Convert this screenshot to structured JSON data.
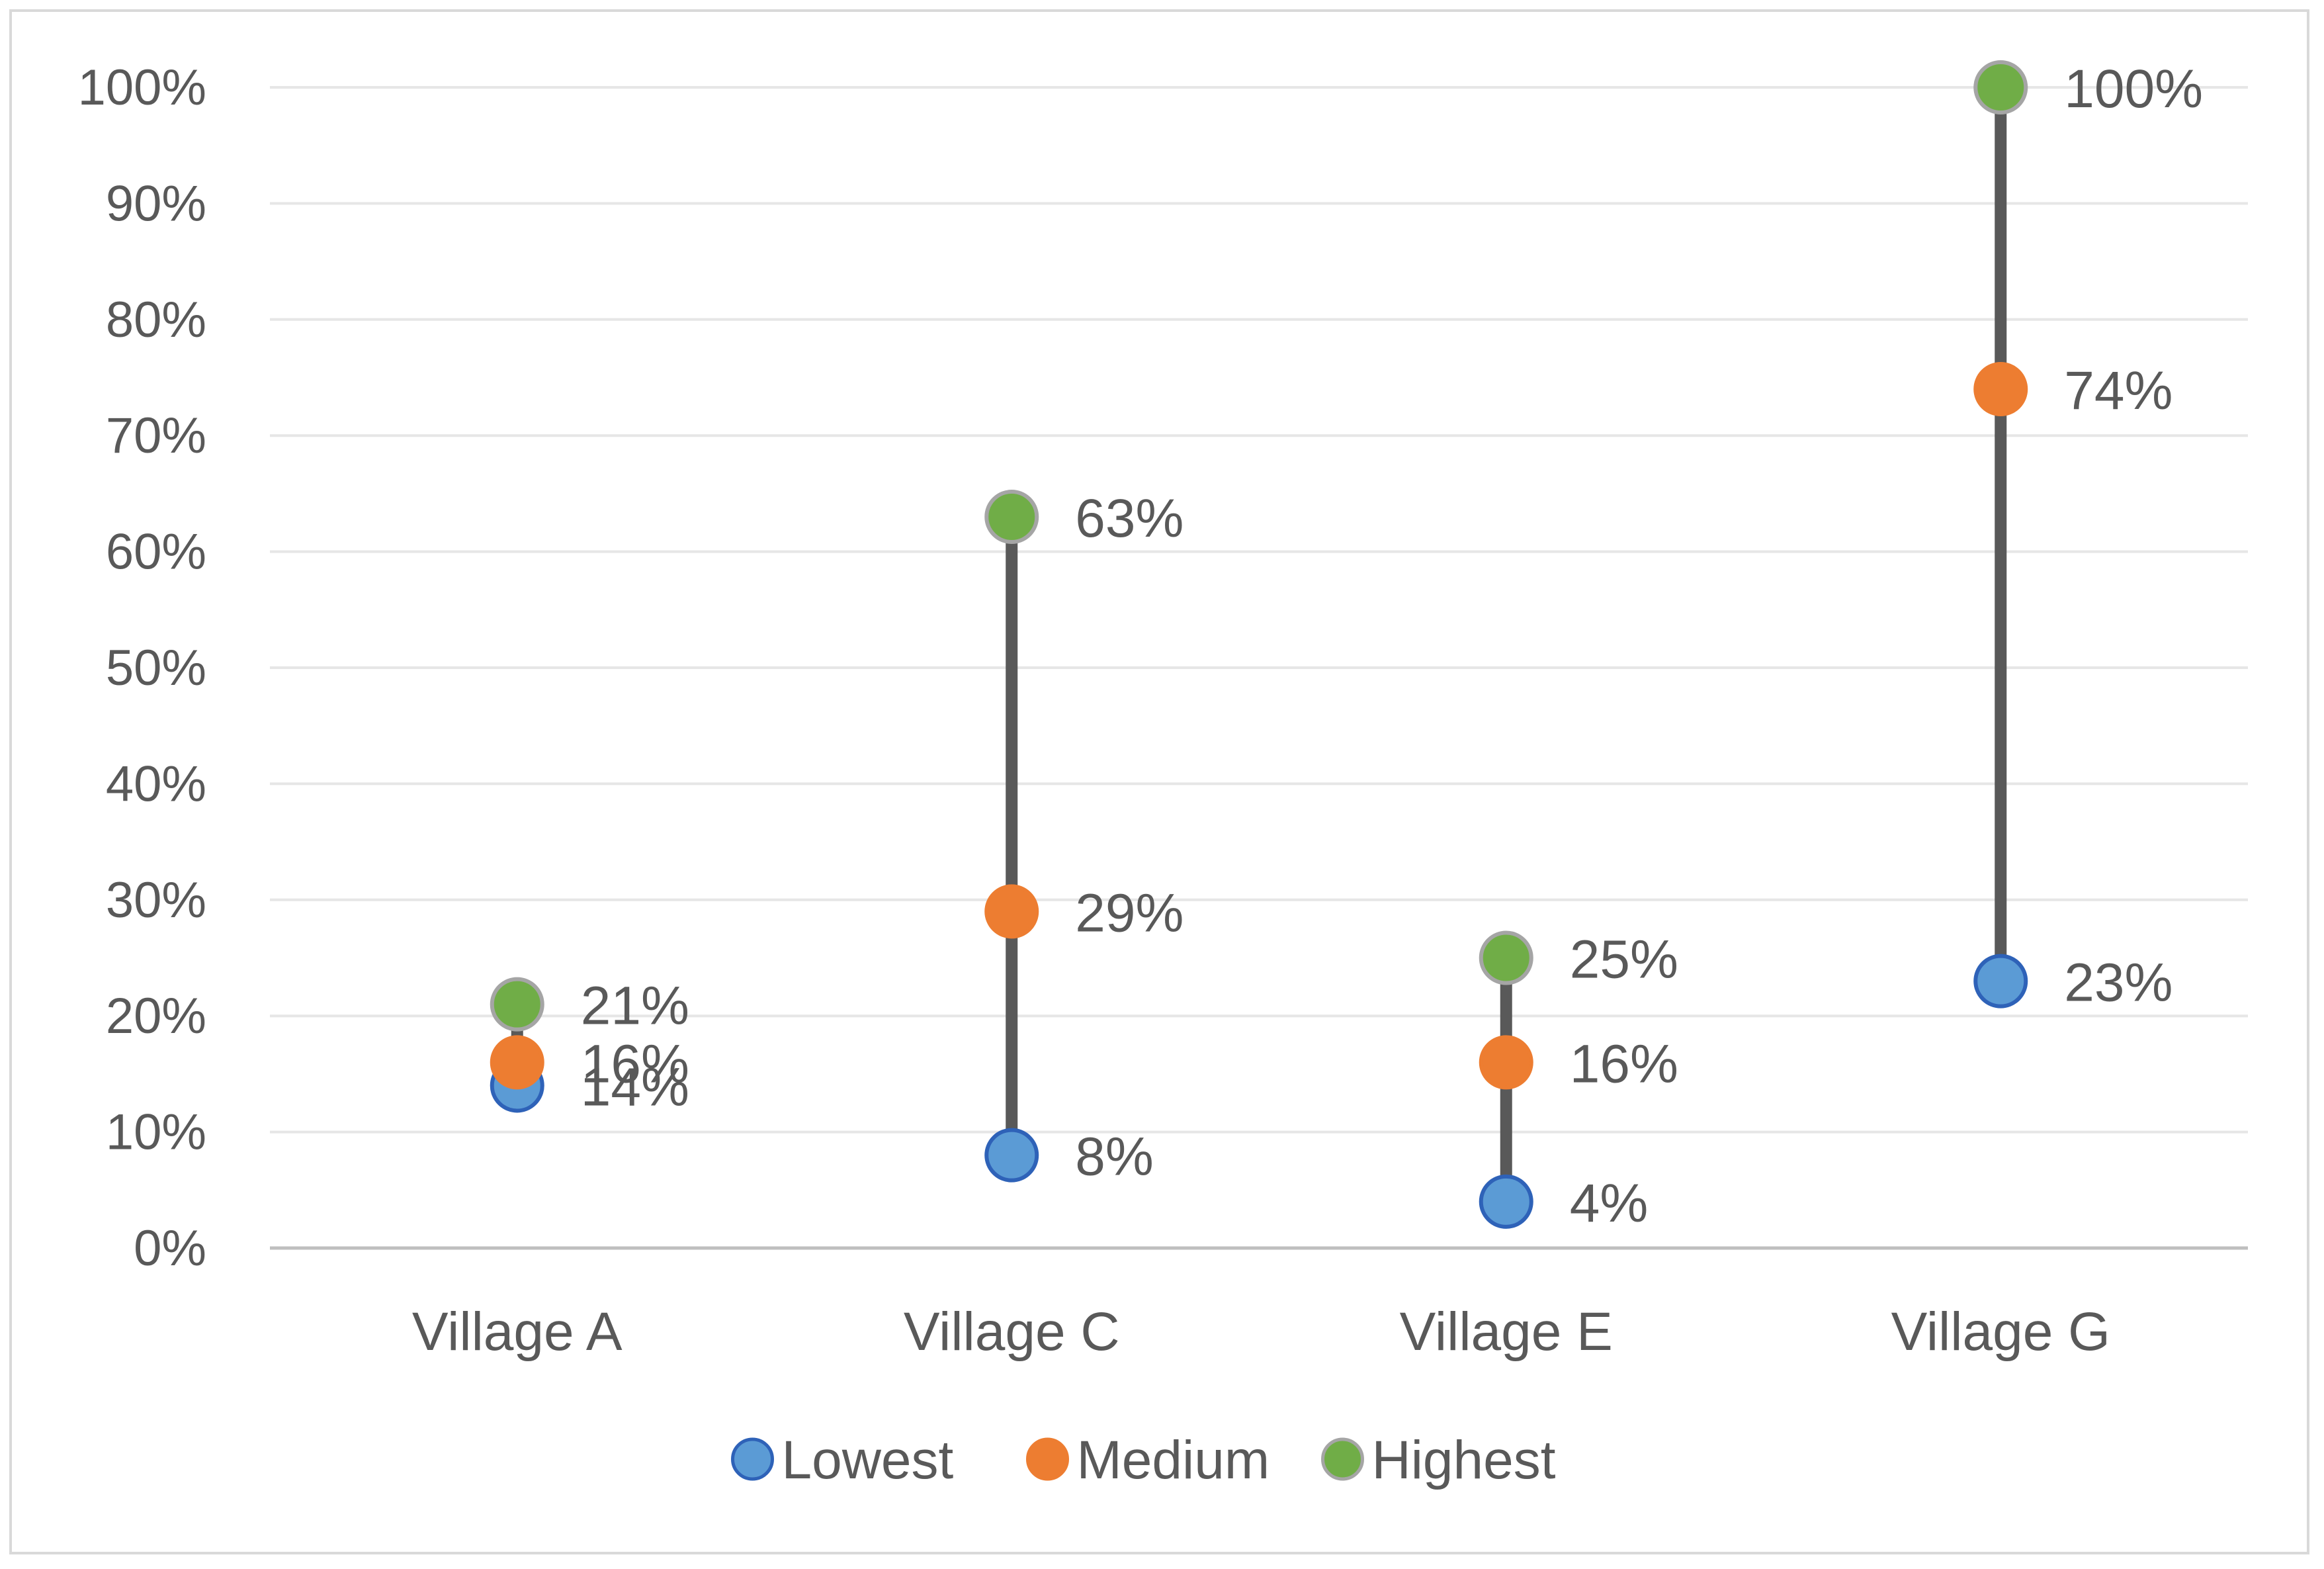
{
  "chart_data": {
    "type": "scatter",
    "title": "",
    "xlabel": "",
    "ylabel": "",
    "categories": [
      "Village A",
      "Village C",
      "Village E",
      "Village G"
    ],
    "ylim": [
      0,
      100
    ],
    "yticks": [
      0,
      10,
      20,
      30,
      40,
      50,
      60,
      70,
      80,
      90,
      100
    ],
    "ytick_labels": [
      "0%",
      "10%",
      "20%",
      "30%",
      "40%",
      "50%",
      "60%",
      "70%",
      "80%",
      "90%",
      "100%"
    ],
    "grid": true,
    "legend_position": "bottom",
    "series": [
      {
        "name": "Lowest",
        "color": "#5b9bd5",
        "stroke": "#2e62b8",
        "values": [
          14,
          8,
          4,
          23
        ],
        "labels": [
          "14%",
          "8%",
          "4%",
          "23%"
        ]
      },
      {
        "name": "Medium",
        "color": "#ed7d31",
        "stroke": "#ed7d31",
        "values": [
          16,
          29,
          16,
          74
        ],
        "labels": [
          "16%",
          "29%",
          "16%",
          "74%"
        ]
      },
      {
        "name": "Highest",
        "color": "#70ad47",
        "stroke": "#a5a5a5",
        "values": [
          21,
          63,
          25,
          100
        ],
        "labels": [
          "21%",
          "63%",
          "25%",
          "100%"
        ]
      }
    ],
    "range_line_color": "#595959"
  }
}
